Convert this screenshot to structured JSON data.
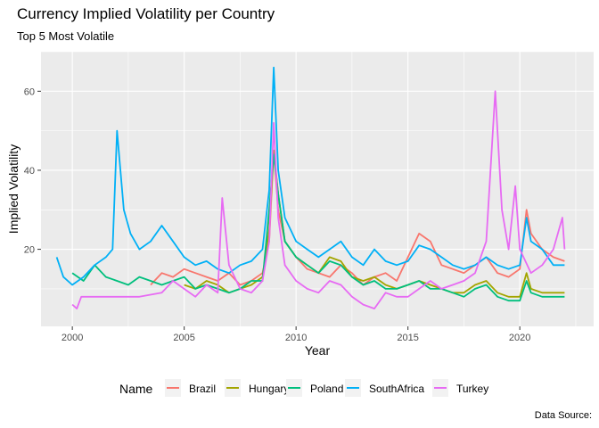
{
  "chart_data": {
    "type": "line",
    "title": "Currency Implied Volatility per Country",
    "subtitle": "Top 5 Most Volatile",
    "xlabel": "Year",
    "ylabel": "Implied Volatility",
    "caption": "Data Source:",
    "xlim": [
      1998.6,
      2023.3
    ],
    "ylim": [
      0.5,
      70
    ],
    "x_ticks": [
      2000,
      2005,
      2010,
      2015,
      2020
    ],
    "y_ticks": [
      20,
      40,
      60
    ],
    "grid": true,
    "legend": {
      "title": "Name",
      "position": "bottom"
    },
    "colors": {
      "Brazil": "#F8766D",
      "Hungary": "#A3A500",
      "Poland": "#00BF7D",
      "SouthAfrica": "#00B0F6",
      "Turkey": "#E76BF3"
    },
    "series": [
      {
        "name": "Brazil",
        "x": [
          2003.5,
          2004.0,
          2004.5,
          2005.0,
          2005.5,
          2006.0,
          2006.5,
          2007.0,
          2007.5,
          2008.0,
          2008.5,
          2008.8,
          2009.0,
          2009.2,
          2009.5,
          2010.0,
          2010.5,
          2011.0,
          2011.5,
          2012.0,
          2012.5,
          2013.0,
          2013.5,
          2014.0,
          2014.5,
          2015.0,
          2015.5,
          2016.0,
          2016.5,
          2017.0,
          2017.5,
          2018.0,
          2018.5,
          2019.0,
          2019.5,
          2020.0,
          2020.3,
          2020.5,
          2021.0,
          2021.5,
          2022.0
        ],
        "y": [
          11,
          14,
          13,
          15,
          14,
          13,
          12,
          14,
          11,
          12,
          14,
          22,
          45,
          30,
          22,
          18,
          15,
          14,
          13,
          16,
          14,
          11,
          13,
          14,
          12,
          18,
          24,
          22,
          16,
          15,
          14,
          16,
          18,
          14,
          13,
          15,
          30,
          24,
          20,
          18,
          17
        ]
      },
      {
        "name": "Hungary",
        "x": [
          2005.0,
          2005.5,
          2006.0,
          2006.5,
          2007.0,
          2007.5,
          2008.0,
          2008.5,
          2008.8,
          2009.0,
          2009.2,
          2009.5,
          2010.0,
          2010.5,
          2011.0,
          2011.5,
          2012.0,
          2012.5,
          2013.0,
          2013.5,
          2014.0,
          2014.5,
          2015.0,
          2015.5,
          2016.0,
          2016.5,
          2017.0,
          2017.5,
          2018.0,
          2018.5,
          2019.0,
          2019.5,
          2020.0,
          2020.3,
          2020.5,
          2021.0,
          2021.5,
          2022.0
        ],
        "y": [
          11,
          10,
          12,
          11,
          9,
          10,
          11,
          13,
          25,
          45,
          34,
          22,
          18,
          16,
          14,
          18,
          17,
          13,
          12,
          13,
          11,
          10,
          11,
          12,
          11,
          10,
          9,
          9,
          11,
          12,
          9,
          8,
          8,
          14,
          10,
          9,
          9,
          9
        ]
      },
      {
        "name": "Poland",
        "x": [
          2000.0,
          2000.5,
          2001.0,
          2001.5,
          2002.0,
          2002.5,
          2003.0,
          2003.5,
          2004.0,
          2004.5,
          2005.0,
          2005.5,
          2006.0,
          2006.5,
          2007.0,
          2007.5,
          2008.0,
          2008.5,
          2008.8,
          2009.0,
          2009.2,
          2009.5,
          2010.0,
          2010.5,
          2011.0,
          2011.5,
          2012.0,
          2012.5,
          2013.0,
          2013.5,
          2014.0,
          2014.5,
          2015.0,
          2015.5,
          2016.0,
          2016.5,
          2017.0,
          2017.5,
          2018.0,
          2018.5,
          2019.0,
          2019.5,
          2020.0,
          2020.3,
          2020.5,
          2021.0,
          2021.5,
          2022.0
        ],
        "y": [
          14,
          12,
          16,
          13,
          12,
          11,
          13,
          12,
          11,
          12,
          13,
          10,
          11,
          10,
          9,
          10,
          12,
          12,
          30,
          44,
          34,
          22,
          18,
          16,
          14,
          17,
          16,
          13,
          11,
          12,
          10,
          10,
          11,
          12,
          10,
          10,
          9,
          8,
          10,
          11,
          8,
          7,
          7,
          12,
          9,
          8,
          8,
          8
        ]
      },
      {
        "name": "SouthAfrica",
        "x": [
          1999.3,
          1999.6,
          2000.0,
          2000.5,
          2001.0,
          2001.5,
          2001.8,
          2002.0,
          2002.3,
          2002.6,
          2003.0,
          2003.5,
          2004.0,
          2004.5,
          2005.0,
          2005.5,
          2006.0,
          2006.5,
          2007.0,
          2007.5,
          2008.0,
          2008.5,
          2008.8,
          2009.0,
          2009.2,
          2009.5,
          2010.0,
          2010.5,
          2011.0,
          2011.5,
          2012.0,
          2012.5,
          2013.0,
          2013.5,
          2014.0,
          2014.5,
          2015.0,
          2015.5,
          2016.0,
          2016.5,
          2017.0,
          2017.5,
          2018.0,
          2018.5,
          2019.0,
          2019.5,
          2020.0,
          2020.3,
          2020.5,
          2021.0,
          2021.5,
          2022.0
        ],
        "y": [
          18,
          13,
          11,
          13,
          16,
          18,
          20,
          50,
          30,
          24,
          20,
          22,
          26,
          22,
          18,
          16,
          17,
          15,
          14,
          16,
          17,
          20,
          35,
          66,
          40,
          28,
          22,
          20,
          18,
          20,
          22,
          18,
          16,
          20,
          17,
          16,
          17,
          21,
          20,
          18,
          16,
          15,
          16,
          18,
          16,
          15,
          16,
          28,
          22,
          20,
          16,
          16
        ]
      },
      {
        "name": "Turkey",
        "x": [
          2000.0,
          2000.2,
          2000.4,
          2000.6,
          2001.0,
          2002.0,
          2003.0,
          2004.0,
          2004.5,
          2005.0,
          2005.5,
          2006.0,
          2006.5,
          2006.7,
          2007.0,
          2007.5,
          2008.0,
          2008.5,
          2008.8,
          2009.0,
          2009.2,
          2009.5,
          2010.0,
          2010.5,
          2011.0,
          2011.5,
          2012.0,
          2012.5,
          2013.0,
          2013.5,
          2014.0,
          2014.5,
          2015.0,
          2015.5,
          2016.0,
          2016.5,
          2017.0,
          2017.5,
          2018.0,
          2018.5,
          2018.9,
          2019.2,
          2019.5,
          2019.8,
          2020.0,
          2020.5,
          2021.0,
          2021.5,
          2021.9,
          2022.0
        ],
        "y": [
          6,
          5,
          8,
          8,
          8,
          8,
          8,
          9,
          12,
          10,
          8,
          11,
          9,
          33,
          16,
          10,
          9,
          12,
          22,
          52,
          28,
          16,
          12,
          10,
          9,
          12,
          11,
          8,
          6,
          5,
          9,
          8,
          8,
          10,
          12,
          10,
          11,
          12,
          14,
          22,
          60,
          30,
          20,
          36,
          20,
          14,
          16,
          20,
          28,
          20
        ]
      }
    ]
  }
}
